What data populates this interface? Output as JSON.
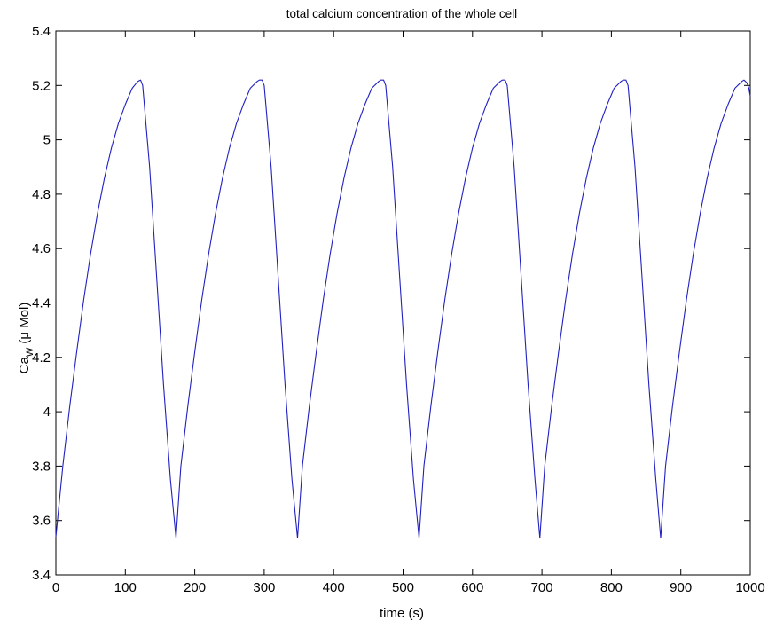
{
  "chart_data": {
    "type": "line",
    "title": "total calcium concentration of the whole cell",
    "xlabel": "time (s)",
    "ylabel": {
      "base": "Ca",
      "sub": "W",
      "rest": " (μ Mol)"
    },
    "xlim": [
      0,
      1000
    ],
    "ylim": [
      3.4,
      5.4
    ],
    "xticks": [
      0,
      100,
      200,
      300,
      400,
      500,
      600,
      700,
      800,
      900,
      1000
    ],
    "xtick_labels": [
      "0",
      "100",
      "200",
      "300",
      "400",
      "500",
      "600",
      "700",
      "800",
      "900",
      "1000"
    ],
    "yticks": [
      3.4,
      3.6,
      3.8,
      4.0,
      4.2,
      4.4,
      4.6,
      4.8,
      5.0,
      5.2,
      5.4
    ],
    "ytick_labels": [
      "3.4",
      "3.6",
      "3.8",
      "4",
      "4.2",
      "4.4",
      "4.6",
      "4.8",
      "5",
      "5.2",
      "5.4"
    ],
    "grid": false,
    "series": [
      {
        "color": "#2020c0",
        "x": [
          0,
          10,
          20,
          30,
          40,
          50,
          60,
          70,
          80,
          90,
          100,
          110,
          118,
          122,
          125,
          135,
          145,
          155,
          165,
          173,
          180,
          190,
          200,
          210,
          220,
          230,
          240,
          250,
          260,
          270,
          280,
          290,
          293,
          297,
          300,
          310,
          320,
          330,
          340,
          348,
          355,
          365,
          375,
          385,
          395,
          405,
          415,
          425,
          435,
          445,
          455,
          465,
          468,
          472,
          475,
          485,
          495,
          505,
          515,
          523,
          530,
          540,
          550,
          560,
          570,
          580,
          590,
          600,
          610,
          620,
          630,
          640,
          643,
          647,
          650,
          660,
          670,
          680,
          690,
          697,
          704,
          714,
          724,
          734,
          744,
          754,
          764,
          774,
          784,
          794,
          804,
          814,
          817,
          821,
          824,
          834,
          844,
          854,
          864,
          871,
          878,
          888,
          898,
          908,
          918,
          928,
          938,
          948,
          958,
          968,
          978,
          988,
          991,
          995,
          998,
          1000
        ],
        "y": [
          3.54,
          3.8,
          4.02,
          4.22,
          4.41,
          4.58,
          4.73,
          4.86,
          4.97,
          5.06,
          5.13,
          5.19,
          5.215,
          5.22,
          5.2,
          4.9,
          4.5,
          4.1,
          3.75,
          3.535,
          3.8,
          4.02,
          4.22,
          4.41,
          4.58,
          4.73,
          4.86,
          4.97,
          5.06,
          5.13,
          5.19,
          5.215,
          5.22,
          5.22,
          5.2,
          4.9,
          4.5,
          4.1,
          3.75,
          3.535,
          3.8,
          4.02,
          4.22,
          4.41,
          4.58,
          4.73,
          4.86,
          4.97,
          5.06,
          5.13,
          5.19,
          5.215,
          5.22,
          5.22,
          5.2,
          4.9,
          4.5,
          4.1,
          3.75,
          3.535,
          3.8,
          4.02,
          4.22,
          4.41,
          4.58,
          4.73,
          4.86,
          4.97,
          5.06,
          5.13,
          5.19,
          5.215,
          5.22,
          5.22,
          5.2,
          4.9,
          4.5,
          4.1,
          3.75,
          3.535,
          3.8,
          4.02,
          4.22,
          4.41,
          4.58,
          4.73,
          4.86,
          4.97,
          5.06,
          5.13,
          5.19,
          5.215,
          5.22,
          5.22,
          5.2,
          4.9,
          4.5,
          4.1,
          3.75,
          3.535,
          3.8,
          4.02,
          4.22,
          4.41,
          4.58,
          4.73,
          4.86,
          4.97,
          5.06,
          5.13,
          5.19,
          5.215,
          5.22,
          5.21,
          5.19,
          5.16
        ]
      }
    ]
  }
}
